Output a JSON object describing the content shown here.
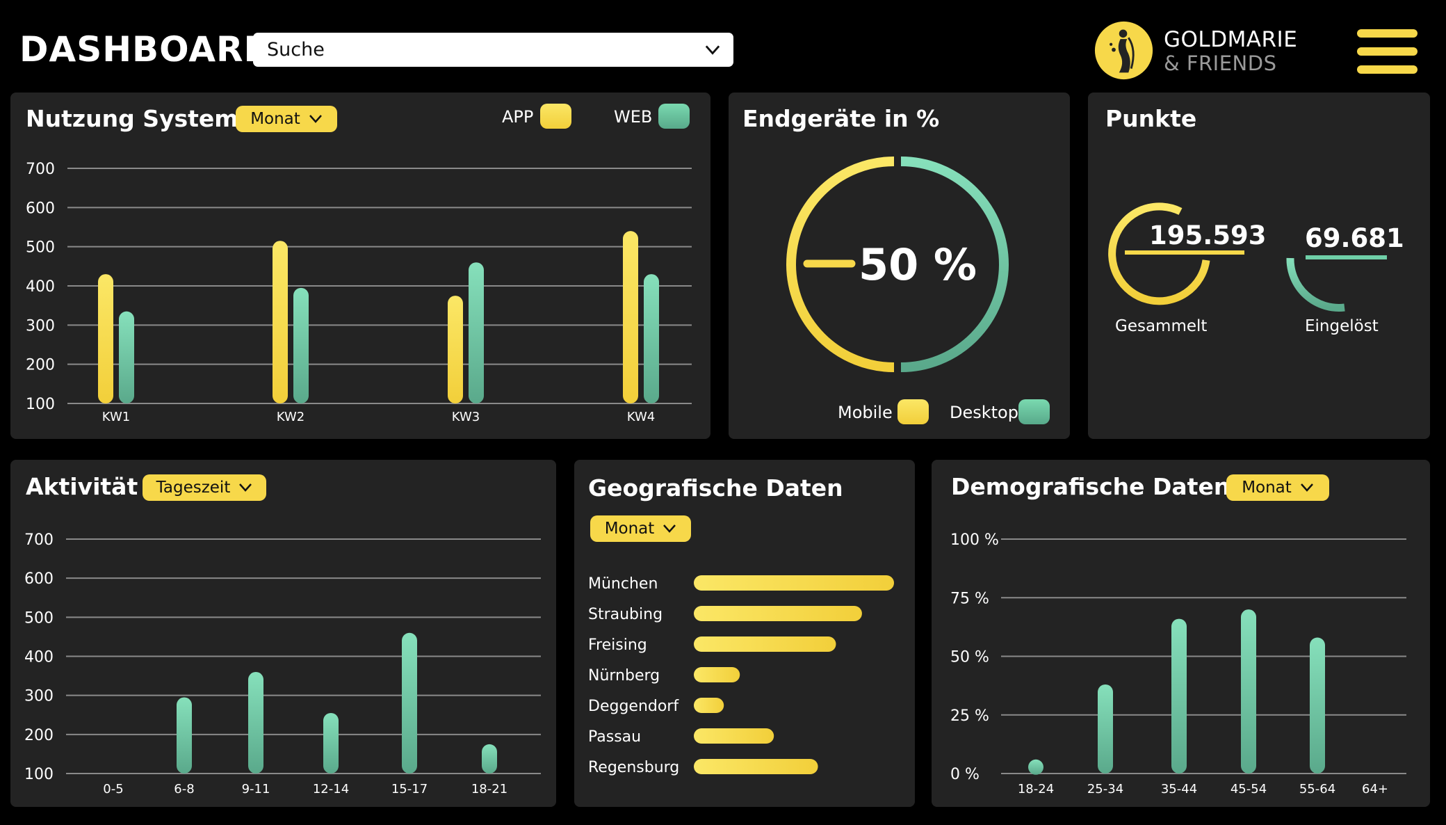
{
  "header": {
    "title": "DASHBOARD",
    "search_value": "Suche",
    "brand_line1": "GOLDMARIE",
    "brand_line2": "& FRIENDS"
  },
  "nutzung": {
    "title": "Nutzung System",
    "filter": "Monat",
    "legend_app": "APP",
    "legend_web": "WEB"
  },
  "endgeraete": {
    "title": "Endgeräte in %",
    "center_value": "50 %",
    "legend_mobile": "Mobile",
    "legend_desktop": "Desktop"
  },
  "punkte": {
    "title": "Punkte",
    "gesammelt_value": "195.593",
    "gesammelt_label": "Gesammelt",
    "eingeloest_value": "69.681",
    "eingeloest_label": "Eingelöst"
  },
  "aktivitaet": {
    "title": "Aktivität",
    "filter": "Tageszeit"
  },
  "geo": {
    "title": "Geografische Daten",
    "filter": "Monat"
  },
  "demo": {
    "title": "Demografische Daten",
    "filter": "Monat"
  },
  "colors": {
    "yellow": "#f7d84a",
    "green": "#6fcfa8",
    "panel": "#232323",
    "background": "#000000"
  },
  "icons": {
    "logo": "harp-figure-icon",
    "menu": "hamburger-menu-icon",
    "dropdown": "chevron-down-icon"
  },
  "chart_data": [
    {
      "id": "nutzung",
      "type": "bar",
      "categories": [
        "KW1",
        "KW2",
        "KW3",
        "KW4"
      ],
      "series": [
        {
          "name": "APP",
          "values": [
            430,
            515,
            375,
            540
          ]
        },
        {
          "name": "WEB",
          "values": [
            335,
            395,
            460,
            430
          ]
        }
      ],
      "ylim": [
        100,
        700
      ],
      "yticks": [
        "700",
        "600",
        "500",
        "400",
        "300",
        "200",
        "100"
      ]
    },
    {
      "id": "endgeraete",
      "type": "pie",
      "labels": [
        "Mobile",
        "Desktop"
      ],
      "values": [
        50,
        50
      ]
    },
    {
      "id": "punkte",
      "type": "pie",
      "labels": [
        "Gesammelt",
        "Eingelöst"
      ],
      "values": [
        195593,
        69681
      ]
    },
    {
      "id": "aktivitaet",
      "type": "bar",
      "categories": [
        "0-5",
        "6-8",
        "9-11",
        "12-14",
        "15-17",
        "18-21"
      ],
      "values": [
        100,
        295,
        360,
        255,
        460,
        175
      ],
      "ylim": [
        100,
        700
      ],
      "yticks": [
        "700",
        "600",
        "500",
        "400",
        "300",
        "200",
        "100"
      ]
    },
    {
      "id": "geo",
      "type": "bar",
      "orientation": "horizontal",
      "categories": [
        "München",
        "Straubing",
        "Freising",
        "Nürnberg",
        "Deggendorf",
        "Passau",
        "Regensburg"
      ],
      "values": [
        100,
        84,
        71,
        23,
        15,
        40,
        62
      ]
    },
    {
      "id": "demo",
      "type": "bar",
      "categories": [
        "18-24",
        "25-34",
        "35-44",
        "45-54",
        "55-64",
        "64+"
      ],
      "values": [
        6,
        38,
        66,
        70,
        58,
        0
      ],
      "ylim": [
        0,
        100
      ],
      "yticks": [
        "100 %",
        "75 %",
        "50 %",
        "25 %",
        "0 %"
      ]
    }
  ]
}
